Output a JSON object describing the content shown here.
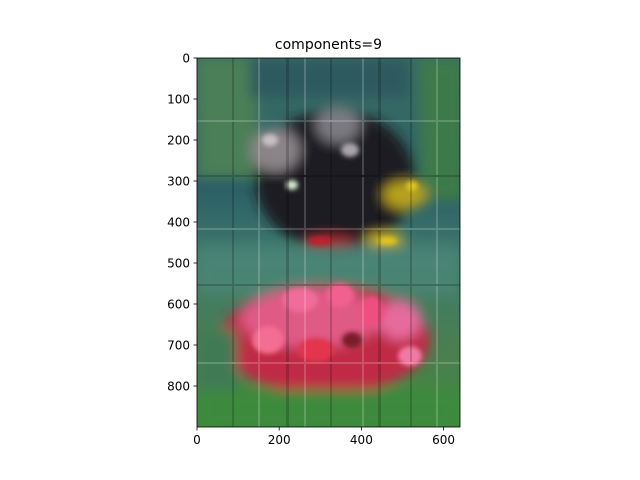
{
  "chart_data": {
    "type": "image",
    "title": "components=9",
    "xlim": [
      0,
      640
    ],
    "ylim": [
      900,
      0
    ],
    "x_ticks": [
      0,
      200,
      400,
      600
    ],
    "y_ticks": [
      0,
      100,
      200,
      300,
      400,
      500,
      600,
      700,
      800
    ],
    "x_tick_labels": [
      "0",
      "200",
      "400",
      "600"
    ],
    "y_tick_labels": [
      "0",
      "100",
      "200",
      "300",
      "400",
      "500",
      "600",
      "700",
      "800"
    ],
    "grid": false,
    "image_description_colors": {
      "background_teal": "#2f6f6a",
      "foliage_green": "#4f8a3a",
      "dark_subject": "#1e1a20",
      "flower_red": "#e0284a",
      "flower_pink": "#ee7aa6",
      "highlight_yellow": "#d7c21a"
    }
  }
}
